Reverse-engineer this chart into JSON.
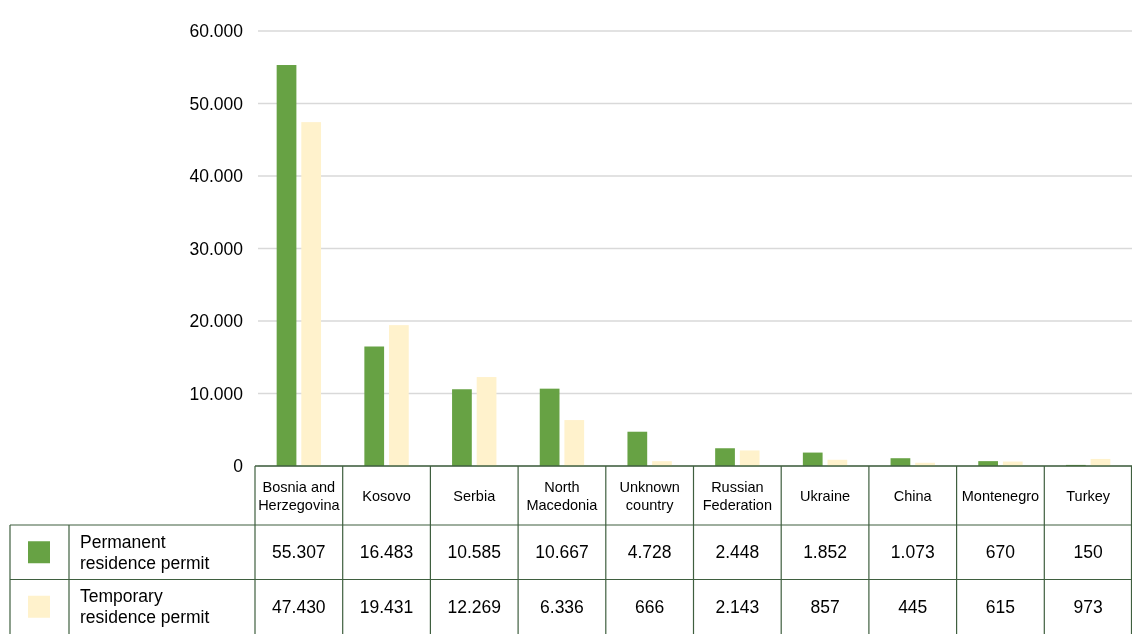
{
  "chart_data": {
    "type": "bar",
    "categories": [
      "Bosnia and Herzegovina",
      "Kosovo",
      "Serbia",
      "North Macedonia",
      "Unknown country",
      "Russian Federation",
      "Ukraine",
      "China",
      "Montenegro",
      "Turkey"
    ],
    "series": [
      {
        "name": "Permanent residence permit",
        "color": "#67a244",
        "values": [
          55307,
          16483,
          10585,
          10667,
          4728,
          2448,
          1852,
          1073,
          670,
          150
        ],
        "value_labels": [
          "55.307",
          "16.483",
          "10.585",
          "10.667",
          "4.728",
          "2.448",
          "1.852",
          "1.073",
          "670",
          "150"
        ]
      },
      {
        "name": "Temporary residence permit",
        "color": "#fff2cc",
        "values": [
          47430,
          19431,
          12269,
          6336,
          666,
          2143,
          857,
          445,
          615,
          973
        ],
        "value_labels": [
          "47.430",
          "19.431",
          "12.269",
          "6.336",
          "666",
          "2.143",
          "857",
          "445",
          "615",
          "973"
        ]
      }
    ],
    "ylim": [
      0,
      60000
    ],
    "yticks": [
      0,
      {
        "value": 10000,
        "label": "10.000"
      },
      {
        "value": 20000,
        "label": "20.000"
      },
      {
        "value": 30000,
        "label": "30.000"
      },
      {
        "value": 40000,
        "label": "40.000"
      },
      {
        "value": 50000,
        "label": "50.000"
      },
      {
        "value": 60000,
        "label": "60.000"
      }
    ],
    "grid": "y",
    "legend": "bottom"
  }
}
